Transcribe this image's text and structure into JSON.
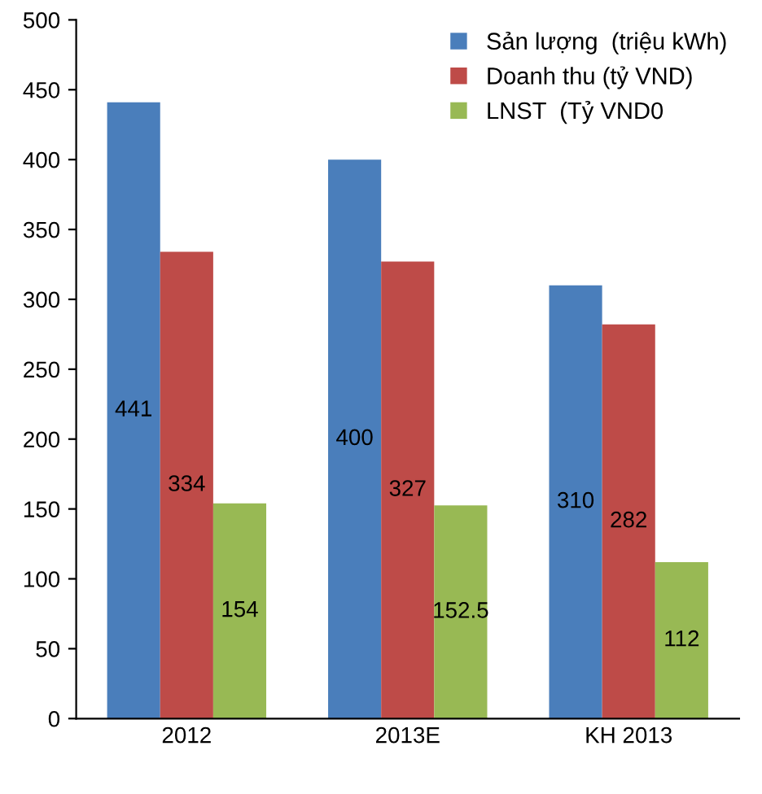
{
  "chart_data": {
    "type": "bar",
    "categories": [
      "2012",
      "2013E",
      "KH 2013"
    ],
    "series": [
      {
        "name": "Sản lượng  (triệu kWh)",
        "color": "#4a7ebb",
        "values": [
          441,
          400,
          310
        ]
      },
      {
        "name": "Doanh thu (tỷ VND)",
        "color": "#be4b48",
        "values": [
          334,
          327,
          282
        ]
      },
      {
        "name": "LNST  (Tỷ VND0",
        "color": "#98b954",
        "values": [
          154,
          152.5,
          112
        ]
      }
    ],
    "ylim": [
      0,
      500
    ],
    "yticks": [
      0,
      50,
      100,
      150,
      200,
      250,
      300,
      350,
      400,
      450,
      500
    ],
    "data_labels": true,
    "legend": "top right",
    "grid": false
  }
}
